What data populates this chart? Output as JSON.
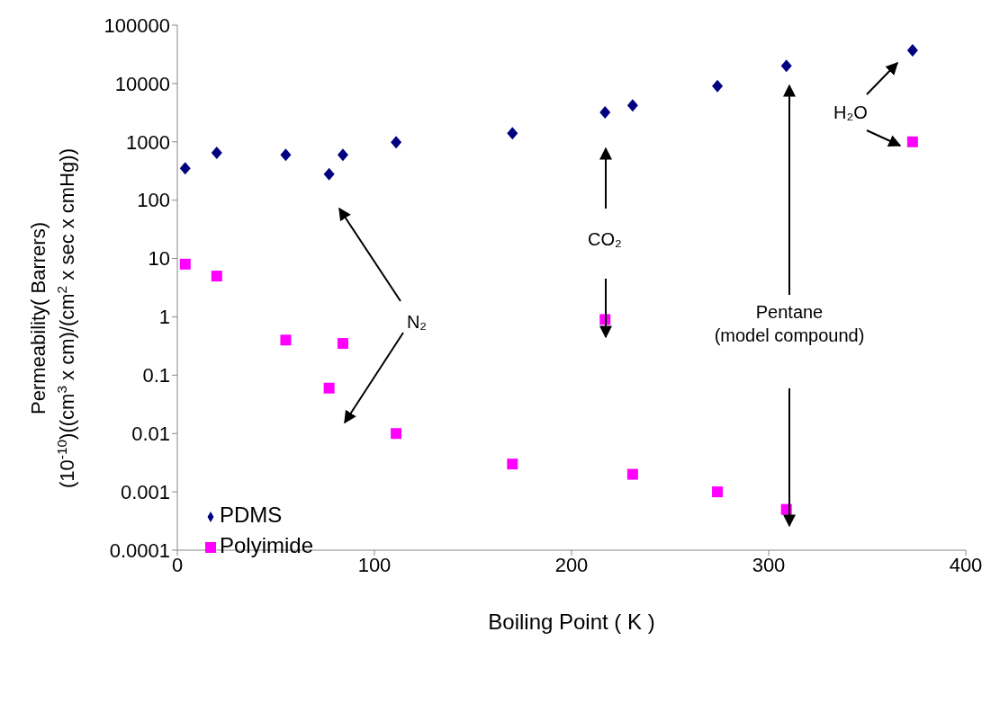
{
  "chart_data": {
    "type": "scatter",
    "xlabel": "Boiling Point ( K )",
    "ylabel": "Permeability( Barrers)\n(10$^{-10}$)((cm$^{3}$ x cm)/(cm$^{2}$ x sec x cmHg))",
    "x": [
      4,
      20,
      55,
      77,
      84,
      111,
      170,
      217,
      231,
      274,
      309,
      373
    ],
    "series": [
      {
        "name": "PDMS",
        "color": "#000080",
        "marker": "diamond",
        "values": [
          350,
          650,
          600,
          280,
          600,
          980,
          1400,
          3200,
          4200,
          9000,
          20000,
          37000
        ]
      },
      {
        "name": "Polyimide",
        "color": "#ff00ff",
        "marker": "square",
        "values": [
          8,
          5,
          0.4,
          0.06,
          0.35,
          0.01,
          0.003,
          0.9,
          0.002,
          0.001,
          0.0005,
          1000
        ]
      }
    ],
    "xlim": [
      0,
      400
    ],
    "xticks": [
      0,
      100,
      200,
      300,
      400
    ],
    "ylim": [
      0.0001,
      100000
    ],
    "yticks": [
      0.0001,
      0.001,
      0.01,
      0.1,
      1,
      10,
      100,
      1000,
      10000,
      100000
    ],
    "log": "y",
    "grid": false,
    "legend": "bottom left",
    "annotations": [
      "N₂",
      "CO₂",
      "Pentane\n(model compound)",
      "H₂O"
    ]
  }
}
